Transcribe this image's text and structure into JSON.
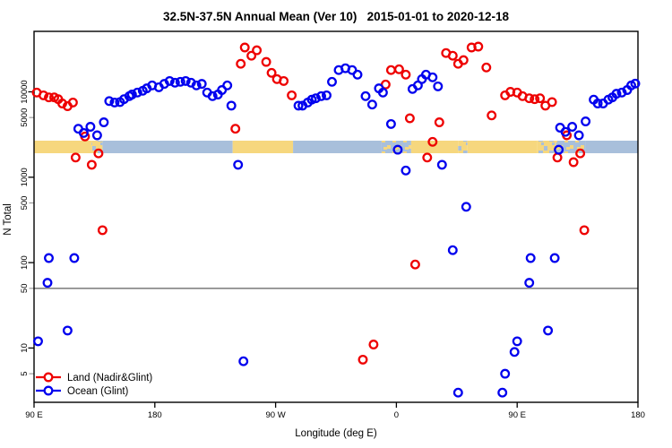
{
  "title": "32.5N-37.5N Annual Mean (Ver 10)   2015-01-01 to 2020-12-18",
  "axes": {
    "x": {
      "label": "Longitude (deg E)",
      "range_unwrapped_deg": [
        90,
        540
      ],
      "ticks": [
        {
          "lon": 90,
          "label": "90 E"
        },
        {
          "lon": 180,
          "label": "180"
        },
        {
          "lon": 270,
          "label": "90 W"
        },
        {
          "lon": 360,
          "label": "0"
        },
        {
          "lon": 450,
          "label": "90 E"
        },
        {
          "lon": 540,
          "label": "180"
        }
      ]
    },
    "y": {
      "label": "N Total",
      "scale": "log10",
      "ticks": [
        {
          "value": 10000,
          "label": "10000",
          "major": true
        },
        {
          "value": 5000,
          "label": "5000",
          "major": false
        },
        {
          "value": 1000,
          "label": "1000",
          "major": true
        },
        {
          "value": 500,
          "label": "500",
          "major": false
        },
        {
          "value": 100,
          "label": "100",
          "major": true
        },
        {
          "value": 50,
          "label": "50",
          "major": false
        },
        {
          "value": 10,
          "label": "10",
          "major": true
        },
        {
          "value": 5,
          "label": "5",
          "major": false
        }
      ]
    }
  },
  "reference_line": {
    "value": 50,
    "color": "#848484"
  },
  "colors": {
    "land_series": "#ee0000",
    "ocean_series": "#0000ee",
    "strip_land": "#f6d77e",
    "strip_ocean": "#a8bfdb"
  },
  "land_ocean_strip": {
    "description": "land/ocean map band along longitude at N~2000-2700",
    "segments": [
      {
        "from": 90,
        "to": 133,
        "type": "land"
      },
      {
        "from": 133,
        "to": 141,
        "type": "mixed_land"
      },
      {
        "from": 141,
        "to": 238,
        "type": "ocean"
      },
      {
        "from": 238,
        "to": 283,
        "type": "land"
      },
      {
        "from": 283,
        "to": 349,
        "type": "ocean"
      },
      {
        "from": 349,
        "to": 371,
        "type": "mixed_ocean"
      },
      {
        "from": 371,
        "to": 406,
        "type": "land"
      },
      {
        "from": 406,
        "to": 413,
        "type": "mixed_land"
      },
      {
        "from": 413,
        "to": 465,
        "type": "land"
      },
      {
        "from": 465,
        "to": 479,
        "type": "mixed_land"
      },
      {
        "from": 479,
        "to": 501,
        "type": "mixed_ocean"
      },
      {
        "from": 501,
        "to": 540,
        "type": "ocean"
      }
    ]
  },
  "legend": {
    "items": [
      {
        "label": "Land (Nadir&Glint)",
        "color": "#ee0000"
      },
      {
        "label": "Ocean (Glint)",
        "color": "#0000ee"
      }
    ]
  },
  "chart_data": {
    "type": "scatter",
    "title": "32.5N-37.5N Annual Mean (Ver 10)   2015-01-01 to 2020-12-18",
    "xlabel": "Longitude (deg E)",
    "ylabel": "N Total",
    "x_units": "degrees east, unwrapped 90..540 (axis wraps: 90E,180,90W,0,90E,180)",
    "y_scale": "log10",
    "ylim": [
      2.3,
      51000
    ],
    "grid": false,
    "legend_position": "bottom-left",
    "series": [
      {
        "name": "Land (Nadir&Glint)",
        "color": "#ee0000",
        "marker": "open-circle",
        "points": [
          [
            92,
            9800
          ],
          [
            97,
            9100
          ],
          [
            101,
            8600
          ],
          [
            105,
            8600
          ],
          [
            108,
            8200
          ],
          [
            111,
            7300
          ],
          [
            115,
            6800
          ],
          [
            119,
            7500
          ],
          [
            121,
            1700
          ],
          [
            128,
            3000
          ],
          [
            133,
            1400
          ],
          [
            138,
            1900
          ],
          [
            141,
            240
          ],
          [
            240,
            3700
          ],
          [
            244,
            21300
          ],
          [
            247,
            33100
          ],
          [
            252,
            26500
          ],
          [
            256,
            30700
          ],
          [
            263,
            22400
          ],
          [
            267,
            16700
          ],
          [
            271,
            14100
          ],
          [
            276,
            13400
          ],
          [
            282,
            9100
          ],
          [
            335,
            7.3
          ],
          [
            343,
            11
          ],
          [
            352,
            12200
          ],
          [
            356,
            18000
          ],
          [
            362,
            18400
          ],
          [
            367,
            15900
          ],
          [
            370,
            4900
          ],
          [
            374,
            95
          ],
          [
            383,
            1700
          ],
          [
            387,
            2600
          ],
          [
            392,
            4400
          ],
          [
            397,
            28500
          ],
          [
            402,
            26500
          ],
          [
            406,
            21300
          ],
          [
            410,
            23500
          ],
          [
            416,
            33100
          ],
          [
            421,
            33900
          ],
          [
            427,
            19300
          ],
          [
            431,
            5300
          ],
          [
            441,
            9100
          ],
          [
            445,
            10000
          ],
          [
            450,
            9800
          ],
          [
            454,
            8900
          ],
          [
            459,
            8400
          ],
          [
            463,
            8200
          ],
          [
            467,
            8400
          ],
          [
            471,
            6900
          ],
          [
            476,
            7600
          ],
          [
            480,
            1700
          ],
          [
            487,
            3100
          ],
          [
            492,
            1500
          ],
          [
            497,
            1900
          ],
          [
            500,
            240
          ]
        ]
      },
      {
        "name": "Ocean (Glint)",
        "color": "#0000ee",
        "marker": "open-circle",
        "points": [
          [
            93,
            12
          ],
          [
            100,
            58
          ],
          [
            101,
            113
          ],
          [
            115,
            16
          ],
          [
            120,
            113
          ],
          [
            123,
            3700
          ],
          [
            127,
            3300
          ],
          [
            132,
            3900
          ],
          [
            137,
            3100
          ],
          [
            142,
            4400
          ],
          [
            146,
            7800
          ],
          [
            150,
            7500
          ],
          [
            154,
            7600
          ],
          [
            157,
            8200
          ],
          [
            161,
            8900
          ],
          [
            163,
            9300
          ],
          [
            167,
            9800
          ],
          [
            171,
            10300
          ],
          [
            174,
            11000
          ],
          [
            178,
            11900
          ],
          [
            183,
            11300
          ],
          [
            187,
            12400
          ],
          [
            191,
            13400
          ],
          [
            195,
            12800
          ],
          [
            199,
            13100
          ],
          [
            203,
            13400
          ],
          [
            207,
            12800
          ],
          [
            211,
            11900
          ],
          [
            215,
            12400
          ],
          [
            219,
            9800
          ],
          [
            223,
            8900
          ],
          [
            227,
            9300
          ],
          [
            230,
            10500
          ],
          [
            234,
            11900
          ],
          [
            237,
            6900
          ],
          [
            242,
            1400
          ],
          [
            246,
            7
          ],
          [
            287,
            6900
          ],
          [
            290,
            6900
          ],
          [
            294,
            7500
          ],
          [
            297,
            8100
          ],
          [
            300,
            8400
          ],
          [
            304,
            8900
          ],
          [
            308,
            9100
          ],
          [
            312,
            13100
          ],
          [
            317,
            18000
          ],
          [
            322,
            18900
          ],
          [
            327,
            18000
          ],
          [
            331,
            15900
          ],
          [
            337,
            8900
          ],
          [
            342,
            7100
          ],
          [
            347,
            11000
          ],
          [
            350,
            9800
          ],
          [
            356,
            4200
          ],
          [
            361,
            2100
          ],
          [
            367,
            1200
          ],
          [
            372,
            10800
          ],
          [
            376,
            11900
          ],
          [
            379,
            14100
          ],
          [
            382,
            15900
          ],
          [
            387,
            14800
          ],
          [
            391,
            11600
          ],
          [
            394,
            1400
          ],
          [
            402,
            140
          ],
          [
            406,
            3
          ],
          [
            412,
            450
          ],
          [
            439,
            3
          ],
          [
            441,
            5
          ],
          [
            448,
            9
          ],
          [
            450,
            12
          ],
          [
            459,
            58
          ],
          [
            460,
            113
          ],
          [
            473,
            16
          ],
          [
            478,
            113
          ],
          [
            481,
            2100
          ],
          [
            482,
            3800
          ],
          [
            486,
            3400
          ],
          [
            491,
            3900
          ],
          [
            496,
            3100
          ],
          [
            501,
            4500
          ],
          [
            507,
            8100
          ],
          [
            510,
            7300
          ],
          [
            514,
            7300
          ],
          [
            518,
            8100
          ],
          [
            521,
            8600
          ],
          [
            524,
            9500
          ],
          [
            528,
            9800
          ],
          [
            532,
            10500
          ],
          [
            535,
            11900
          ],
          [
            538,
            12500
          ]
        ]
      }
    ]
  }
}
